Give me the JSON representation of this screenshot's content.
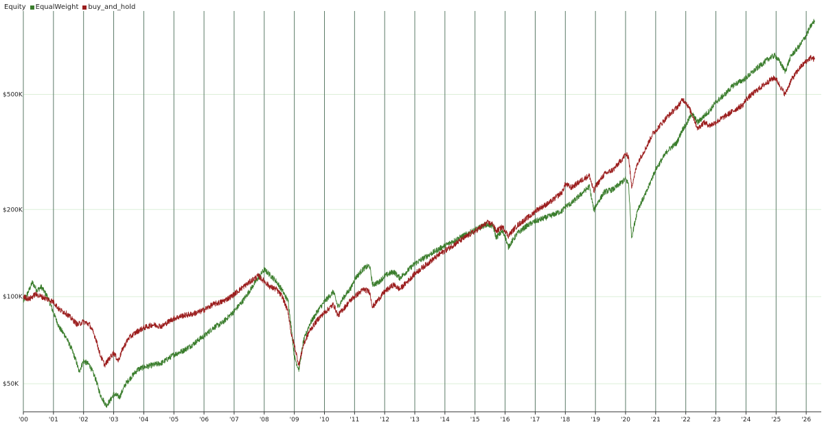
{
  "chart_data": {
    "type": "line",
    "title": "Equity",
    "xlabel": "",
    "ylabel": "",
    "y_scale": "log",
    "ylim": [
      40000,
      960000
    ],
    "y_ticks": [
      {
        "value": 50000,
        "label": "$50K"
      },
      {
        "value": 100000,
        "label": "$100K"
      },
      {
        "value": 200000,
        "label": "$200K"
      },
      {
        "value": 500000,
        "label": "$500K"
      }
    ],
    "x_ticks": [
      "'00",
      "'01",
      "'02",
      "'03",
      "'04",
      "'05",
      "'06",
      "'07",
      "'08",
      "'09",
      "'10",
      "'11",
      "'12",
      "'13",
      "'14",
      "'15",
      "'16",
      "'17",
      "'18",
      "'19",
      "'20",
      "'21",
      "'22",
      "'23",
      "'24",
      "'25",
      "'26"
    ],
    "xlim": [
      2000.0,
      2026.3
    ],
    "grid": true,
    "legend": "top-left",
    "series": [
      {
        "name": "EqualWeight",
        "color": "#3a7d2c",
        "points": [
          [
            2000.0,
            96000
          ],
          [
            2000.15,
            103000
          ],
          [
            2000.3,
            112000
          ],
          [
            2000.45,
            105000
          ],
          [
            2000.6,
            108000
          ],
          [
            2000.8,
            100000
          ],
          [
            2001.0,
            88000
          ],
          [
            2001.2,
            78000
          ],
          [
            2001.4,
            73000
          ],
          [
            2001.6,
            66000
          ],
          [
            2001.75,
            60000
          ],
          [
            2001.85,
            55000
          ],
          [
            2002.0,
            60000
          ],
          [
            2002.2,
            58000
          ],
          [
            2002.4,
            52000
          ],
          [
            2002.55,
            46000
          ],
          [
            2002.75,
            42000
          ],
          [
            2002.9,
            44000
          ],
          [
            2003.0,
            46000
          ],
          [
            2003.2,
            45000
          ],
          [
            2003.4,
            50000
          ],
          [
            2003.6,
            53000
          ],
          [
            2003.8,
            56000
          ],
          [
            2004.0,
            57000
          ],
          [
            2004.3,
            58000
          ],
          [
            2004.6,
            59000
          ],
          [
            2004.9,
            62000
          ],
          [
            2005.0,
            63000
          ],
          [
            2005.3,
            65000
          ],
          [
            2005.6,
            68000
          ],
          [
            2005.9,
            72000
          ],
          [
            2006.0,
            73000
          ],
          [
            2006.3,
            78000
          ],
          [
            2006.6,
            81000
          ],
          [
            2006.9,
            87000
          ],
          [
            2007.0,
            89000
          ],
          [
            2007.3,
            97000
          ],
          [
            2007.6,
            108000
          ],
          [
            2007.8,
            116000
          ],
          [
            2008.0,
            124000
          ],
          [
            2008.15,
            120000
          ],
          [
            2008.4,
            113000
          ],
          [
            2008.6,
            105000
          ],
          [
            2008.8,
            96000
          ],
          [
            2008.9,
            78000
          ],
          [
            2009.0,
            62000
          ],
          [
            2009.15,
            56000
          ],
          [
            2009.3,
            70000
          ],
          [
            2009.5,
            80000
          ],
          [
            2009.8,
            90000
          ],
          [
            2010.0,
            96000
          ],
          [
            2010.3,
            104000
          ],
          [
            2010.45,
            92000
          ],
          [
            2010.6,
            98000
          ],
          [
            2010.9,
            108000
          ],
          [
            2011.0,
            115000
          ],
          [
            2011.3,
            125000
          ],
          [
            2011.5,
            128000
          ],
          [
            2011.6,
            110000
          ],
          [
            2011.8,
            112000
          ],
          [
            2012.0,
            118000
          ],
          [
            2012.3,
            122000
          ],
          [
            2012.5,
            116000
          ],
          [
            2012.8,
            124000
          ],
          [
            2013.0,
            130000
          ],
          [
            2013.5,
            140000
          ],
          [
            2013.9,
            148000
          ],
          [
            2014.0,
            150000
          ],
          [
            2014.5,
            160000
          ],
          [
            2014.9,
            168000
          ],
          [
            2015.0,
            170000
          ],
          [
            2015.4,
            178000
          ],
          [
            2015.6,
            175000
          ],
          [
            2015.7,
            160000
          ],
          [
            2015.9,
            168000
          ],
          [
            2016.0,
            162000
          ],
          [
            2016.1,
            148000
          ],
          [
            2016.4,
            165000
          ],
          [
            2016.7,
            175000
          ],
          [
            2016.9,
            180000
          ],
          [
            2017.0,
            182000
          ],
          [
            2017.5,
            190000
          ],
          [
            2017.9,
            198000
          ],
          [
            2018.0,
            205000
          ],
          [
            2018.2,
            210000
          ],
          [
            2018.6,
            230000
          ],
          [
            2018.8,
            240000
          ],
          [
            2018.95,
            198000
          ],
          [
            2019.0,
            205000
          ],
          [
            2019.3,
            230000
          ],
          [
            2019.6,
            235000
          ],
          [
            2019.9,
            250000
          ],
          [
            2020.0,
            255000
          ],
          [
            2020.1,
            245000
          ],
          [
            2020.2,
            160000
          ],
          [
            2020.4,
            200000
          ],
          [
            2020.7,
            230000
          ],
          [
            2020.9,
            260000
          ],
          [
            2021.0,
            275000
          ],
          [
            2021.4,
            320000
          ],
          [
            2021.7,
            340000
          ],
          [
            2021.9,
            380000
          ],
          [
            2022.0,
            390000
          ],
          [
            2022.2,
            430000
          ],
          [
            2022.4,
            400000
          ],
          [
            2022.6,
            420000
          ],
          [
            2022.8,
            440000
          ],
          [
            2023.0,
            470000
          ],
          [
            2023.3,
            500000
          ],
          [
            2023.6,
            540000
          ],
          [
            2023.9,
            560000
          ],
          [
            2024.0,
            570000
          ],
          [
            2024.4,
            620000
          ],
          [
            2024.8,
            670000
          ],
          [
            2024.95,
            680000
          ],
          [
            2025.0,
            675000
          ],
          [
            2025.15,
            640000
          ],
          [
            2025.3,
            600000
          ],
          [
            2025.5,
            680000
          ],
          [
            2025.8,
            740000
          ],
          [
            2026.0,
            800000
          ],
          [
            2026.15,
            860000
          ],
          [
            2026.28,
            900000
          ]
        ]
      },
      {
        "name": "buy_and_hold",
        "color": "#9b1d1d",
        "points": [
          [
            2000.0,
            100000
          ],
          [
            2000.2,
            98000
          ],
          [
            2000.4,
            102000
          ],
          [
            2000.6,
            100000
          ],
          [
            2000.8,
            98000
          ],
          [
            2001.0,
            96000
          ],
          [
            2001.2,
            90000
          ],
          [
            2001.4,
            88000
          ],
          [
            2001.6,
            84000
          ],
          [
            2001.8,
            80000
          ],
          [
            2002.0,
            82000
          ],
          [
            2002.2,
            80000
          ],
          [
            2002.4,
            72000
          ],
          [
            2002.55,
            63000
          ],
          [
            2002.7,
            58000
          ],
          [
            2002.9,
            62000
          ],
          [
            2003.0,
            64000
          ],
          [
            2003.15,
            60000
          ],
          [
            2003.3,
            66000
          ],
          [
            2003.5,
            72000
          ],
          [
            2003.8,
            76000
          ],
          [
            2004.0,
            78000
          ],
          [
            2004.3,
            80000
          ],
          [
            2004.6,
            79000
          ],
          [
            2004.9,
            83000
          ],
          [
            2005.0,
            84000
          ],
          [
            2005.3,
            86000
          ],
          [
            2005.6,
            87000
          ],
          [
            2005.9,
            89000
          ],
          [
            2006.0,
            90000
          ],
          [
            2006.3,
            94000
          ],
          [
            2006.6,
            96000
          ],
          [
            2006.9,
            100000
          ],
          [
            2007.0,
            102000
          ],
          [
            2007.3,
            108000
          ],
          [
            2007.6,
            114000
          ],
          [
            2007.8,
            118000
          ],
          [
            2008.0,
            113000
          ],
          [
            2008.2,
            108000
          ],
          [
            2008.4,
            106000
          ],
          [
            2008.6,
            100000
          ],
          [
            2008.8,
            88000
          ],
          [
            2008.9,
            74000
          ],
          [
            2009.0,
            68000
          ],
          [
            2009.15,
            58000
          ],
          [
            2009.3,
            68000
          ],
          [
            2009.5,
            76000
          ],
          [
            2009.8,
            84000
          ],
          [
            2010.0,
            88000
          ],
          [
            2010.3,
            94000
          ],
          [
            2010.45,
            86000
          ],
          [
            2010.6,
            90000
          ],
          [
            2010.9,
            98000
          ],
          [
            2011.0,
            100000
          ],
          [
            2011.3,
            106000
          ],
          [
            2011.5,
            104000
          ],
          [
            2011.6,
            92000
          ],
          [
            2011.8,
            98000
          ],
          [
            2012.0,
            104000
          ],
          [
            2012.3,
            110000
          ],
          [
            2012.5,
            106000
          ],
          [
            2012.8,
            114000
          ],
          [
            2013.0,
            120000
          ],
          [
            2013.5,
            132000
          ],
          [
            2013.9,
            142000
          ],
          [
            2014.0,
            144000
          ],
          [
            2014.5,
            156000
          ],
          [
            2014.9,
            166000
          ],
          [
            2015.0,
            168000
          ],
          [
            2015.4,
            180000
          ],
          [
            2015.6,
            178000
          ],
          [
            2015.7,
            168000
          ],
          [
            2015.9,
            174000
          ],
          [
            2016.0,
            170000
          ],
          [
            2016.1,
            162000
          ],
          [
            2016.4,
            176000
          ],
          [
            2016.7,
            186000
          ],
          [
            2016.9,
            192000
          ],
          [
            2017.0,
            198000
          ],
          [
            2017.5,
            212000
          ],
          [
            2017.9,
            230000
          ],
          [
            2018.0,
            245000
          ],
          [
            2018.2,
            238000
          ],
          [
            2018.6,
            255000
          ],
          [
            2018.8,
            262000
          ],
          [
            2018.95,
            230000
          ],
          [
            2019.0,
            240000
          ],
          [
            2019.3,
            265000
          ],
          [
            2019.6,
            275000
          ],
          [
            2019.9,
            300000
          ],
          [
            2020.0,
            310000
          ],
          [
            2020.1,
            305000
          ],
          [
            2020.2,
            240000
          ],
          [
            2020.4,
            290000
          ],
          [
            2020.7,
            330000
          ],
          [
            2020.9,
            365000
          ],
          [
            2021.0,
            375000
          ],
          [
            2021.4,
            420000
          ],
          [
            2021.7,
            450000
          ],
          [
            2021.9,
            480000
          ],
          [
            2022.0,
            470000
          ],
          [
            2022.2,
            430000
          ],
          [
            2022.4,
            380000
          ],
          [
            2022.6,
            400000
          ],
          [
            2022.8,
            390000
          ],
          [
            2023.0,
            400000
          ],
          [
            2023.3,
            420000
          ],
          [
            2023.6,
            440000
          ],
          [
            2023.9,
            460000
          ],
          [
            2024.0,
            480000
          ],
          [
            2024.4,
            520000
          ],
          [
            2024.8,
            560000
          ],
          [
            2024.95,
            570000
          ],
          [
            2025.0,
            565000
          ],
          [
            2025.15,
            530000
          ],
          [
            2025.3,
            500000
          ],
          [
            2025.5,
            560000
          ],
          [
            2025.8,
            620000
          ],
          [
            2026.0,
            650000
          ],
          [
            2026.15,
            670000
          ],
          [
            2026.28,
            660000
          ]
        ]
      }
    ]
  }
}
